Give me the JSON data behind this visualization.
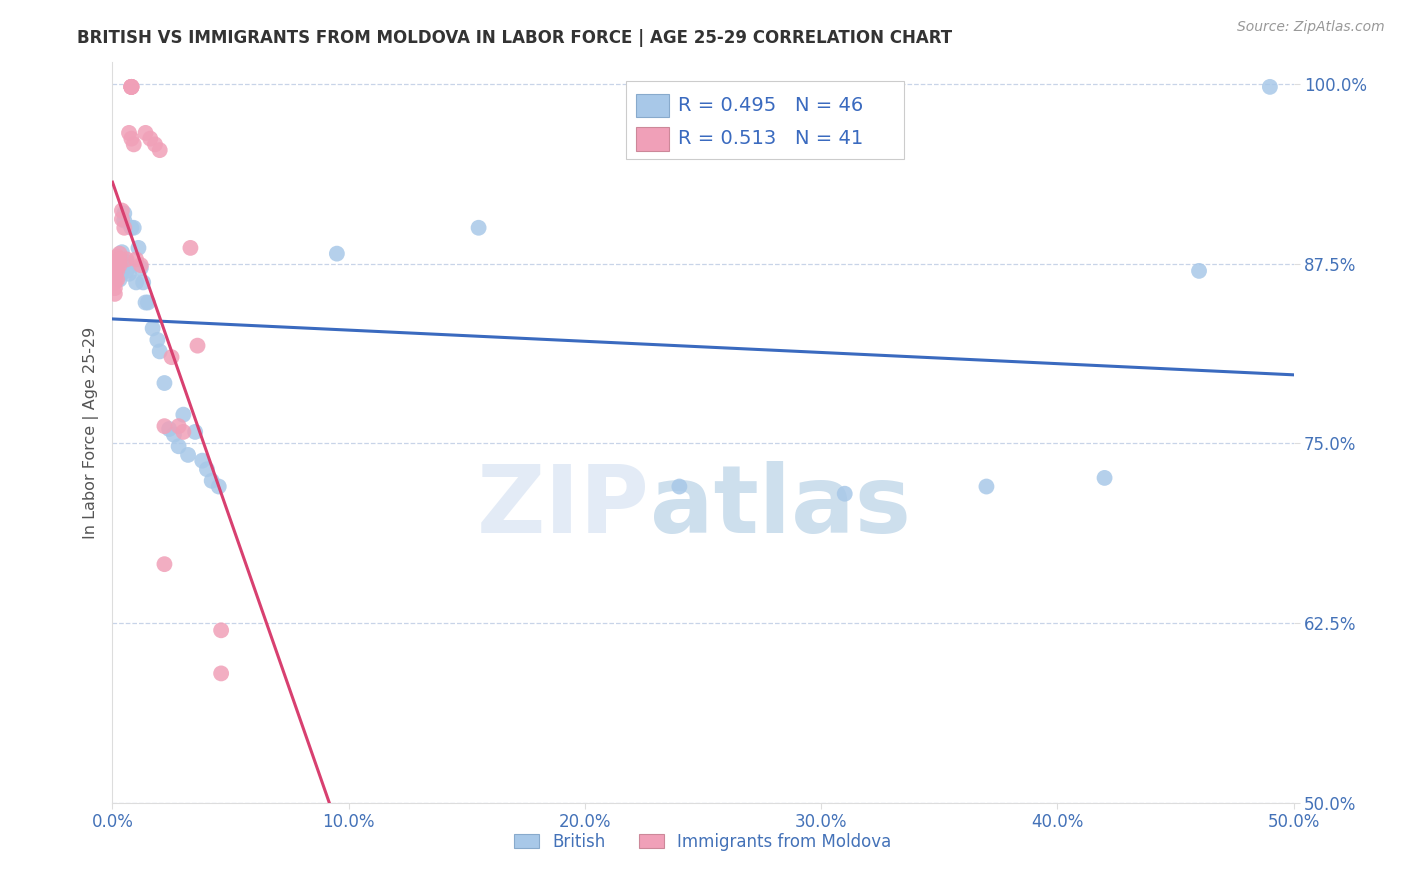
{
  "title": "BRITISH VS IMMIGRANTS FROM MOLDOVA IN LABOR FORCE | AGE 25-29 CORRELATION CHART",
  "source": "Source: ZipAtlas.com",
  "ylabel": "In Labor Force | Age 25-29",
  "xlim": [
    0.0,
    0.5
  ],
  "ylim": [
    0.5,
    1.015
  ],
  "xticks": [
    0.0,
    0.1,
    0.2,
    0.3,
    0.4,
    0.5
  ],
  "xtick_labels": [
    "0.0%",
    "10.0%",
    "20.0%",
    "30.0%",
    "40.0%",
    "50.0%"
  ],
  "yticks": [
    0.5,
    0.625,
    0.75,
    0.875,
    1.0
  ],
  "ytick_labels": [
    "50.0%",
    "62.5%",
    "75.0%",
    "87.5%",
    "100.0%"
  ],
  "british_R": 0.495,
  "british_N": 46,
  "moldova_R": 0.513,
  "moldova_N": 41,
  "british_color": "#a8c8e8",
  "british_line_color": "#3a6abf",
  "moldova_color": "#f0a0b8",
  "moldova_line_color": "#d84070",
  "british_x": [
    0.001,
    0.001,
    0.002,
    0.002,
    0.002,
    0.003,
    0.003,
    0.003,
    0.004,
    0.004,
    0.004,
    0.005,
    0.005,
    0.006,
    0.006,
    0.007,
    0.008,
    0.009,
    0.01,
    0.011,
    0.012,
    0.013,
    0.014,
    0.015,
    0.017,
    0.019,
    0.02,
    0.022,
    0.024,
    0.026,
    0.028,
    0.03,
    0.032,
    0.035,
    0.038,
    0.04,
    0.042,
    0.045,
    0.095,
    0.155,
    0.24,
    0.31,
    0.37,
    0.42,
    0.46,
    0.49
  ],
  "british_y": [
    0.876,
    0.87,
    0.876,
    0.872,
    0.866,
    0.874,
    0.87,
    0.864,
    0.883,
    0.876,
    0.87,
    0.91,
    0.905,
    0.876,
    0.87,
    0.868,
    0.9,
    0.9,
    0.862,
    0.886,
    0.872,
    0.862,
    0.848,
    0.848,
    0.83,
    0.822,
    0.814,
    0.792,
    0.76,
    0.756,
    0.748,
    0.77,
    0.742,
    0.758,
    0.738,
    0.732,
    0.724,
    0.72,
    0.882,
    0.9,
    0.72,
    0.715,
    0.72,
    0.726,
    0.87,
    0.998
  ],
  "moldova_x": [
    0.001,
    0.001,
    0.001,
    0.001,
    0.001,
    0.001,
    0.001,
    0.002,
    0.002,
    0.002,
    0.002,
    0.003,
    0.003,
    0.003,
    0.004,
    0.004,
    0.005,
    0.006,
    0.007,
    0.008,
    0.009,
    0.01,
    0.012,
    0.014,
    0.016,
    0.018,
    0.02,
    0.022,
    0.025,
    0.028,
    0.03,
    0.033,
    0.036,
    0.008,
    0.008,
    0.008,
    0.008,
    0.008,
    0.022,
    0.046,
    0.046
  ],
  "moldova_y": [
    0.876,
    0.873,
    0.87,
    0.866,
    0.862,
    0.858,
    0.854,
    0.88,
    0.876,
    0.87,
    0.864,
    0.882,
    0.878,
    0.874,
    0.912,
    0.906,
    0.9,
    0.878,
    0.966,
    0.962,
    0.958,
    0.878,
    0.874,
    0.966,
    0.962,
    0.958,
    0.954,
    0.762,
    0.81,
    0.762,
    0.758,
    0.886,
    0.818,
    0.998,
    0.998,
    0.998,
    0.998,
    0.998,
    0.666,
    0.62,
    0.59
  ],
  "watermark_zip": "ZIP",
  "watermark_atlas": "atlas",
  "background_color": "#ffffff",
  "grid_color": "#c8d4e8",
  "title_color": "#333333",
  "axis_label_color": "#555555",
  "tick_color": "#4472b8",
  "source_color": "#999999"
}
